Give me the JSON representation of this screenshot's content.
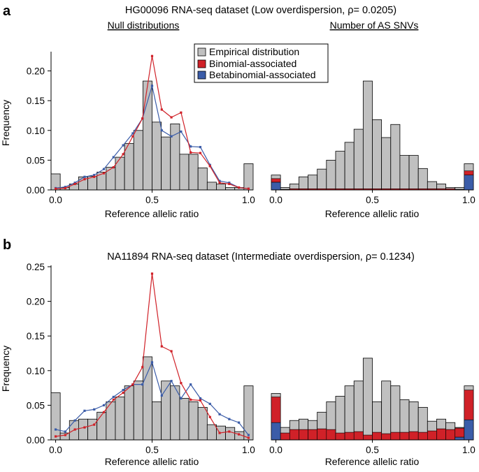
{
  "colors": {
    "bar": "#c0c0c0",
    "binomial": "#d02128",
    "betabinomial": "#3b5ca8"
  },
  "legend": {
    "empirical": "Empirical distribution",
    "binomial": "Binomial-associated",
    "betabinomial": "Betabinomial-associated"
  },
  "chart_data": [
    {
      "panel": "a",
      "type": "bar",
      "title": "HG00096 RNA-seq dataset (Low overdispersion, ρ= 0.0205)",
      "left_subtitle": "Null distributions",
      "right_subtitle": "Number of AS SNVs",
      "ylabel": "Frequency",
      "xlabel": "Reference allelic ratio",
      "xticks": [
        "0.0",
        "0.5",
        "1.0"
      ],
      "yticks": [
        "0.00",
        "0.05",
        "0.10",
        "0.15",
        "0.20"
      ],
      "ylim": [
        0,
        0.23
      ],
      "empirical": [
        0.027,
        0.004,
        0.01,
        0.022,
        0.023,
        0.03,
        0.038,
        0.055,
        0.078,
        0.1,
        0.183,
        0.114,
        0.089,
        0.111,
        0.06,
        0.06,
        0.037,
        0.013,
        0.01,
        0.004,
        0.004,
        0.044
      ],
      "binomial_line": [
        0.002,
        0.003,
        0.01,
        0.018,
        0.022,
        0.028,
        0.038,
        0.06,
        0.09,
        0.12,
        0.225,
        0.135,
        0.122,
        0.13,
        0.063,
        0.062,
        0.04,
        0.012,
        0.01,
        0.004,
        0.002
      ],
      "betabinomial_line": [
        0.003,
        0.005,
        0.012,
        0.022,
        0.025,
        0.035,
        0.055,
        0.075,
        0.095,
        0.12,
        0.175,
        0.1,
        0.09,
        0.098,
        0.073,
        0.072,
        0.042,
        0.015,
        0.012,
        0.004,
        0.002
      ],
      "right_empirical": [
        0.025,
        0.004,
        0.01,
        0.022,
        0.025,
        0.035,
        0.05,
        0.065,
        0.08,
        0.102,
        0.183,
        0.118,
        0.088,
        0.11,
        0.058,
        0.058,
        0.036,
        0.014,
        0.01,
        0.004,
        0.004,
        0.044
      ],
      "right_binomial": [
        0.006,
        0.001,
        0.002,
        0.002,
        0.002,
        0.002,
        0.002,
        0.002,
        0.002,
        0.002,
        0.002,
        0.002,
        0.002,
        0.002,
        0.002,
        0.002,
        0.002,
        0.002,
        0.002,
        0.002,
        0.001,
        0.007
      ],
      "right_betabinomial": [
        0.013,
        0.0,
        0.0,
        0.0,
        0.0,
        0.0,
        0.0,
        0.0,
        0.0,
        0.0,
        0.0,
        0.0,
        0.0,
        0.0,
        0.0,
        0.0,
        0.0,
        0.0,
        0.0,
        0.0,
        0.0,
        0.025
      ]
    },
    {
      "panel": "b",
      "type": "bar",
      "title": "NA11894 RNA-seq dataset (Intermediate overdispersion, ρ= 0.1234)",
      "ylabel": "Frequency",
      "xlabel": "Reference allelic ratio",
      "xticks": [
        "0.0",
        "0.5",
        "1.0"
      ],
      "yticks": [
        "0.00",
        "0.05",
        "0.10",
        "0.15",
        "0.20",
        "0.25"
      ],
      "ylim": [
        0,
        0.25
      ],
      "empirical": [
        0.068,
        0.01,
        0.028,
        0.03,
        0.03,
        0.04,
        0.055,
        0.062,
        0.078,
        0.085,
        0.12,
        0.055,
        0.085,
        0.078,
        0.06,
        0.055,
        0.047,
        0.022,
        0.02,
        0.018,
        0.012,
        0.078
      ],
      "binomial_line": [
        0.005,
        0.007,
        0.015,
        0.018,
        0.022,
        0.04,
        0.058,
        0.068,
        0.08,
        0.105,
        0.24,
        0.135,
        0.128,
        0.082,
        0.058,
        0.057,
        0.033,
        0.01,
        0.012,
        0.008,
        0.003
      ],
      "betabinomial_line": [
        0.015,
        0.012,
        0.028,
        0.042,
        0.044,
        0.05,
        0.062,
        0.072,
        0.08,
        0.08,
        0.112,
        0.064,
        0.085,
        0.06,
        0.08,
        0.06,
        0.052,
        0.037,
        0.03,
        0.025,
        0.007
      ],
      "right_empirical": [
        0.067,
        0.018,
        0.028,
        0.03,
        0.028,
        0.04,
        0.055,
        0.063,
        0.078,
        0.085,
        0.118,
        0.055,
        0.085,
        0.078,
        0.058,
        0.055,
        0.047,
        0.027,
        0.03,
        0.025,
        0.018,
        0.078
      ],
      "right_binomial": [
        0.037,
        0.01,
        0.015,
        0.015,
        0.015,
        0.016,
        0.015,
        0.01,
        0.011,
        0.012,
        0.007,
        0.011,
        0.009,
        0.011,
        0.011,
        0.012,
        0.011,
        0.013,
        0.016,
        0.015,
        0.013,
        0.043
      ],
      "right_betabinomial": [
        0.025,
        0.0,
        0.0,
        0.0,
        0.0,
        0.0,
        0.0,
        0.0,
        0.0,
        0.0,
        0.0,
        0.0,
        0.0,
        0.0,
        0.0,
        0.0,
        0.0,
        0.0,
        0.0,
        0.0,
        0.004,
        0.029
      ]
    }
  ]
}
